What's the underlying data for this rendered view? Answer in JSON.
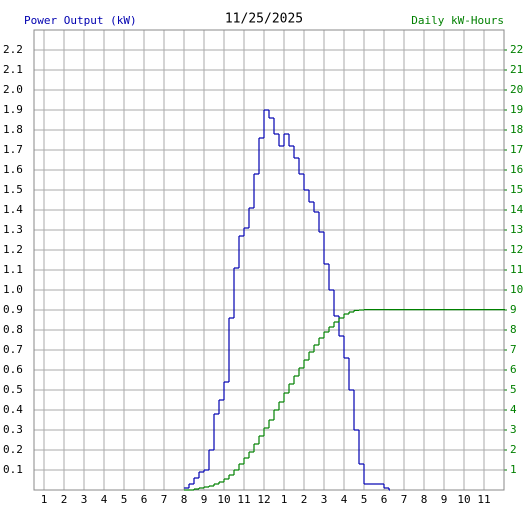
{
  "chart_data": {
    "type": "step",
    "title": "11/25/2025",
    "y_label": "Power Output (kW)",
    "y2_label": "Daily kW-Hours",
    "grid": true,
    "x": [
      8.0,
      8.25,
      8.5,
      8.75,
      9.0,
      9.25,
      9.5,
      9.75,
      10.0,
      10.25,
      10.5,
      10.75,
      11.0,
      11.25,
      11.5,
      11.75,
      12.0,
      12.25,
      12.5,
      12.75,
      13.0,
      13.25,
      13.5,
      13.75,
      14.0,
      14.25,
      14.5,
      14.75,
      15.0,
      15.25,
      15.5,
      15.75,
      16.0,
      16.25,
      16.5,
      16.75,
      17.0,
      17.25,
      17.5,
      17.75,
      18.0,
      18.25,
      24
    ],
    "series": [
      {
        "name": "Power Output (kW)",
        "color": "#0000b0",
        "axis": "y",
        "values": [
          0.01,
          0.03,
          0.06,
          0.09,
          0.1,
          0.2,
          0.38,
          0.45,
          0.54,
          0.86,
          1.11,
          1.27,
          1.31,
          1.41,
          1.58,
          1.76,
          1.9,
          1.86,
          1.78,
          1.72,
          1.78,
          1.72,
          1.66,
          1.58,
          1.5,
          1.44,
          1.39,
          1.29,
          1.13,
          1.0,
          0.87,
          0.77,
          0.66,
          0.5,
          0.3,
          0.13,
          0.03,
          0.03,
          0.03,
          0.03,
          0.01,
          0,
          null
        ]
      },
      {
        "name": "Daily kW-Hours",
        "color": "#008000",
        "axis": "y2",
        "values": [
          0,
          0,
          0.05,
          0.1,
          0.15,
          0.2,
          0.3,
          0.4,
          0.55,
          0.75,
          1.0,
          1.3,
          1.6,
          1.9,
          2.3,
          2.7,
          3.1,
          3.5,
          4.0,
          4.4,
          4.85,
          5.3,
          5.7,
          6.1,
          6.5,
          6.9,
          7.25,
          7.6,
          7.9,
          8.15,
          8.4,
          8.6,
          8.8,
          8.9,
          8.98,
          9.0,
          9.02,
          9.02,
          9.02,
          9.02,
          9.02,
          9.02,
          9.02
        ]
      }
    ],
    "xlim": [
      0.5,
      24
    ],
    "xticks": [
      1,
      2,
      3,
      4,
      5,
      6,
      7,
      8,
      9,
      10,
      11,
      12,
      {
        "value": 13,
        "label": "1"
      },
      {
        "value": 14,
        "label": "2"
      },
      {
        "value": 15,
        "label": "3"
      },
      {
        "value": 16,
        "label": "4"
      },
      {
        "value": 17,
        "label": "5"
      },
      {
        "value": 18,
        "label": "6"
      },
      {
        "value": 19,
        "label": "7"
      },
      {
        "value": 20,
        "label": "8"
      },
      {
        "value": 21,
        "label": "9"
      },
      {
        "value": 22,
        "label": "10"
      },
      {
        "value": 23,
        "label": "11"
      }
    ],
    "ylim": [
      0,
      2.3
    ],
    "yticks": [
      0.1,
      0.2,
      0.3,
      0.4,
      0.5,
      0.6,
      0.7,
      0.8,
      0.9,
      {
        "value": 1,
        "label": "1.0"
      },
      1.1,
      1.2,
      1.3,
      1.4,
      1.5,
      1.6,
      1.7,
      1.8,
      1.9,
      {
        "value": 2,
        "label": "2.0"
      },
      2.1,
      2.2
    ],
    "y2lim": [
      0,
      23
    ],
    "y2ticks": [
      1,
      2,
      3,
      4,
      5,
      6,
      7,
      8,
      9,
      10,
      11,
      12,
      13,
      14,
      15,
      16,
      17,
      18,
      19,
      20,
      21,
      22
    ]
  }
}
